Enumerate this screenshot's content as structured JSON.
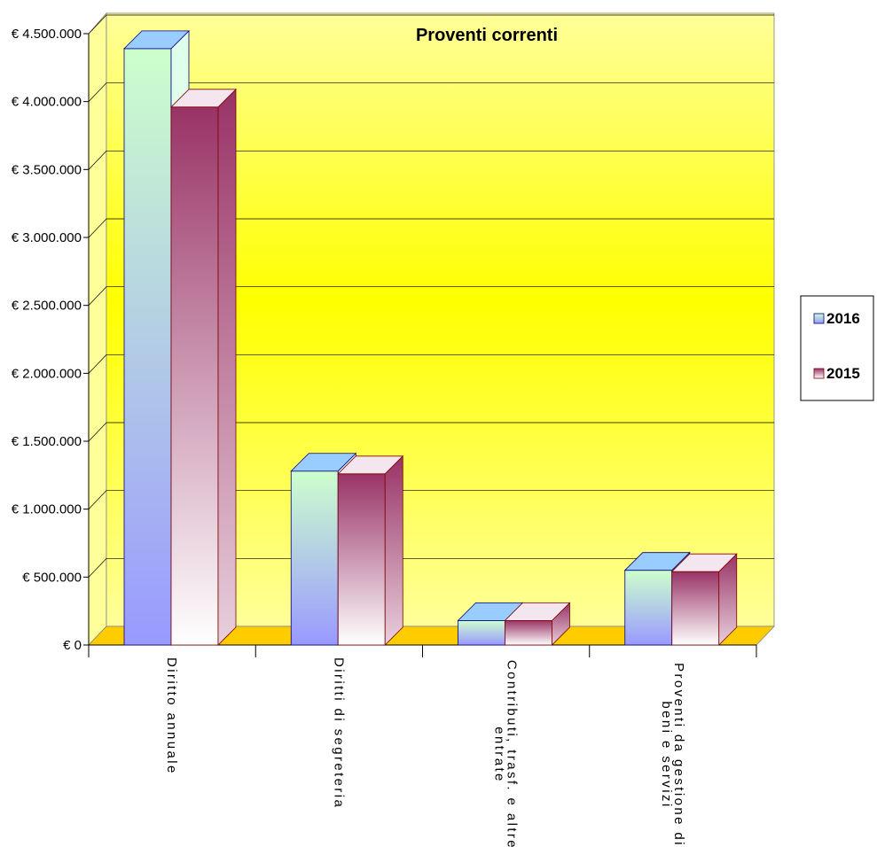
{
  "chart_data": {
    "type": "bar",
    "title": "Proventi correnti",
    "categories": [
      [
        "Diritto annuale"
      ],
      [
        "Diritti di segreteria"
      ],
      [
        "Contributi, trasf. e altre",
        "entrate"
      ],
      [
        "Proventi da gestione di",
        "beni e servizi"
      ]
    ],
    "series": [
      {
        "name": "2016",
        "values": [
          4390000,
          1280000,
          180000,
          550000
        ]
      },
      {
        "name": "2015",
        "values": [
          3960000,
          1260000,
          180000,
          540000
        ]
      }
    ],
    "ylim": [
      0,
      4500000
    ],
    "y_ticks": [
      0,
      500000,
      1000000,
      1500000,
      2000000,
      2500000,
      3000000,
      3500000,
      4000000,
      4500000
    ],
    "y_tick_labels": [
      "€ 0",
      "€ 500.000",
      "€ 1.000.000",
      "€ 1.500.000",
      "€ 2.000.000",
      "€ 2.500.000",
      "€ 3.000.000",
      "€ 3.500.000",
      "€ 4.000.000",
      "€ 4.500.000"
    ],
    "grid": true,
    "legend_position": "right",
    "colors": {
      "wall_edge": "#ffff99",
      "wall_center": "#ffff00",
      "floor": "#ffcc00",
      "series_2016_top": "#ccffcc",
      "series_2016_bottom": "#9999ff",
      "series_2016_side": "#ccffcc",
      "series_2016_outline": "#000080",
      "series_2015_top": "#993366",
      "series_2015_bottom": "#ffffff",
      "series_2015_side": "#993366",
      "series_2015_outline": "#800000"
    }
  }
}
